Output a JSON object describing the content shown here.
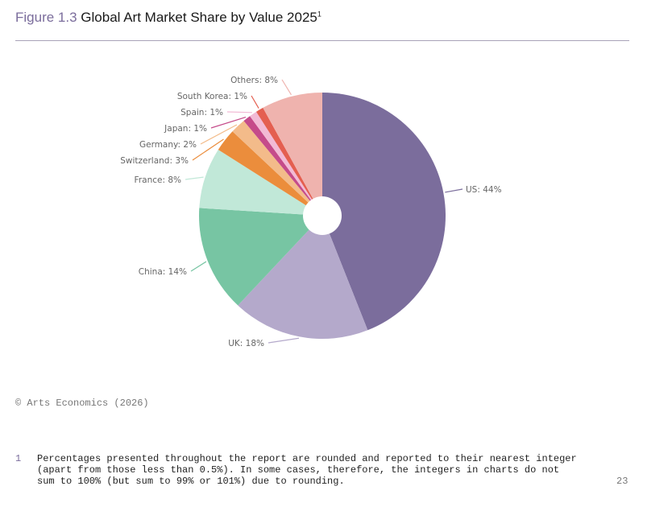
{
  "title": {
    "figure": "Figure 1.3",
    "text": "Global Art Market Share by Value 2025",
    "footnote_ref": "1"
  },
  "chart_data": {
    "type": "pie",
    "title": "Global Art Market Share by Value 2025",
    "categories": [
      "US",
      "UK",
      "China",
      "France",
      "Switzerland",
      "Germany",
      "Japan",
      "Spain",
      "South Korea",
      "Others"
    ],
    "values": [
      44,
      18,
      14,
      8,
      3,
      2,
      1,
      1,
      1,
      8
    ],
    "unit": "%",
    "labels": [
      "US: 44%",
      "UK: 18%",
      "China: 14%",
      "France: 8%",
      "Switzerland: 3%",
      "Germany: 2%",
      "Japan: 1%",
      "Spain: 1%",
      "South Korea: 1%",
      "Others: 8%"
    ],
    "colors": [
      "#7b6d9c",
      "#b4a9cb",
      "#77c5a3",
      "#c1e8d8",
      "#eb8d3c",
      "#f3bb8a",
      "#c54b8a",
      "#f2bad5",
      "#e45f50",
      "#efb3ae"
    ],
    "donut_hole": true
  },
  "source": "© Arts Economics (2026)",
  "footnote": {
    "number": "1",
    "text": "Percentages presented throughout the report are rounded and reported to their nearest integer\n(apart from those less than 0.5%). In some cases, therefore, the integers in charts do not\nsum to 100% (but sum to 99% or 101%) due to rounding."
  },
  "page_number": "23"
}
